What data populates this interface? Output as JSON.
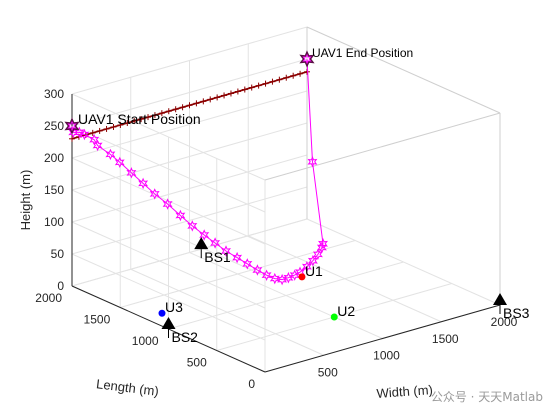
{
  "chart_data": {
    "type": "scatter",
    "title": "",
    "xlabel": "Width (m)",
    "ylabel": "Length (m)",
    "zlabel": "Height (m)",
    "xlim": [
      0,
      2000
    ],
    "ylim": [
      0,
      2000
    ],
    "zlim": [
      0,
      300
    ],
    "x_ticks": [
      "500",
      "1000",
      "1500",
      "2000"
    ],
    "y_ticks": [
      "0",
      "500",
      "1000",
      "1500",
      "2000"
    ],
    "z_ticks": [
      "0",
      "50",
      "100",
      "150",
      "200",
      "250",
      "300"
    ],
    "grid": true,
    "series": [
      {
        "marker": "+",
        "color": "#8b0000",
        "points": [
          [
            0,
            2000,
            230
          ],
          [
            2000,
            2000,
            230
          ]
        ]
      },
      {
        "marker": "hexagram",
        "color": "#ff00ff",
        "points": [
          [
            0,
            2000,
            250
          ],
          [
            -30,
            1950,
            245
          ],
          [
            -20,
            1900,
            248
          ],
          [
            40,
            1920,
            240
          ],
          [
            90,
            1880,
            232
          ],
          [
            70,
            1820,
            228
          ],
          [
            130,
            1760,
            215
          ],
          [
            160,
            1700,
            205
          ],
          [
            210,
            1640,
            190
          ],
          [
            260,
            1580,
            175
          ],
          [
            310,
            1520,
            160
          ],
          [
            370,
            1460,
            145
          ],
          [
            430,
            1400,
            128
          ],
          [
            490,
            1350,
            112
          ],
          [
            550,
            1300,
            98
          ],
          [
            610,
            1260,
            85
          ],
          [
            670,
            1220,
            72
          ],
          [
            740,
            1190,
            60
          ],
          [
            810,
            1170,
            48
          ],
          [
            880,
            1150,
            36
          ],
          [
            950,
            1140,
            25
          ],
          [
            1020,
            1140,
            16
          ],
          [
            1090,
            1150,
            10
          ],
          [
            1160,
            1170,
            8
          ],
          [
            1230,
            1190,
            7
          ],
          [
            1300,
            1220,
            6
          ],
          [
            1400,
            1270,
            6
          ],
          [
            1500,
            1330,
            6
          ],
          [
            1600,
            1400,
            6
          ],
          [
            1700,
            1480,
            6
          ],
          [
            1750,
            1530,
            6
          ],
          [
            1800,
            1700,
            120
          ],
          [
            2000,
            2000,
            250
          ]
        ]
      }
    ],
    "points": [
      {
        "id": "u1",
        "label": "U1",
        "x": 1300,
        "y": 1200,
        "z": 0,
        "color": "#ff0000",
        "marker": "circle"
      },
      {
        "id": "u2",
        "label": "U2",
        "x": 1000,
        "y": 500,
        "z": 0,
        "color": "#00ff00",
        "marker": "circle"
      },
      {
        "id": "u3",
        "label": "U3",
        "x": 150,
        "y": 1250,
        "z": 0,
        "color": "#0000ff",
        "marker": "circle"
      },
      {
        "id": "bs1",
        "label": "BS1",
        "x": 1100,
        "y": 2000,
        "z": 0,
        "color": "#000000",
        "marker": "triangle"
      },
      {
        "id": "bs2",
        "label": "BS2",
        "x": 0,
        "y": 1000,
        "z": 0,
        "color": "#000000",
        "marker": "triangle"
      },
      {
        "id": "bs3",
        "label": "BS3",
        "x": 2000,
        "y": 0,
        "z": 0,
        "color": "#000000",
        "marker": "triangle"
      }
    ],
    "annotations": [
      {
        "id": "start",
        "text": "UAV1 Start Position",
        "x": 0,
        "y": 2000,
        "z": 250
      },
      {
        "id": "end",
        "text": "UAV1 End Position",
        "x": 2000,
        "y": 2000,
        "z": 250
      }
    ],
    "watermark": "公众号 · 天天Matlab"
  }
}
